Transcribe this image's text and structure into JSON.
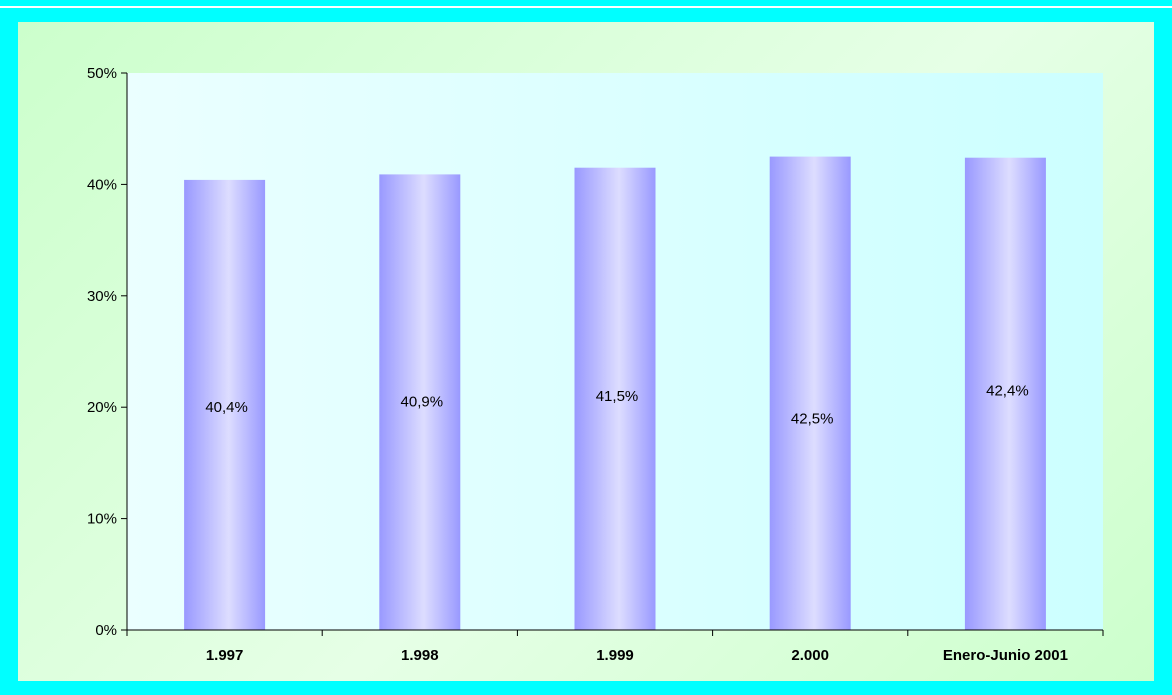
{
  "colors": {
    "outer_background": "#00ffff",
    "chart_area_background": "#ccffcc",
    "plot_background_start": "#ebffff",
    "plot_background_end": "#ccffff",
    "bar_edge": "#9999ff",
    "bar_center": "#ddddff"
  },
  "chart_data": {
    "type": "bar",
    "categories": [
      "1.997",
      "1.998",
      "1.999",
      "2.000",
      "Enero-Junio 2001"
    ],
    "values": [
      40.4,
      40.9,
      41.5,
      42.5,
      42.4
    ],
    "data_labels": [
      "40,4%",
      "40,9%",
      "41,5%",
      "42,5%",
      "42,4%"
    ],
    "data_label_y": [
      20,
      20.5,
      21,
      19,
      21.5
    ],
    "yticks": [
      "0%",
      "10%",
      "20%",
      "30%",
      "40%",
      "50%"
    ],
    "ylim": [
      0,
      50
    ],
    "grid": false,
    "legend": "none"
  }
}
